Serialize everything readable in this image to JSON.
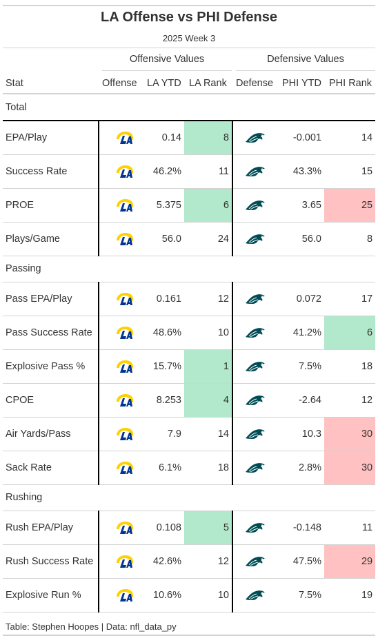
{
  "title": "LA Offense vs PHI Defense",
  "subtitle": "2025 Week 3",
  "spanners": {
    "offense": "Offensive Values",
    "defense": "Defensive Values"
  },
  "columns": {
    "stat": "Stat",
    "offense": "Offense",
    "off_ytd": "LA YTD",
    "off_rank": "LA Rank",
    "defense": "Defense",
    "def_ytd": "PHI YTD",
    "def_rank": "PHI Rank"
  },
  "colors": {
    "good": "#b2e8cc",
    "bad": "#ffc1c1",
    "rams_blue": "#003594",
    "rams_gold": "#ffd100",
    "eagles_green": "#004c54"
  },
  "icons": {
    "offense_logo": "la-rams-logo",
    "defense_logo": "philadelphia-eagles-logo"
  },
  "groups": [
    {
      "name": "Total",
      "rows": [
        {
          "stat": "EPA/Play",
          "off_ytd": "0.14",
          "off_rank": "8",
          "off_hl": "good",
          "def_ytd": "-0.001",
          "def_rank": "14",
          "def_hl": ""
        },
        {
          "stat": "Success Rate",
          "off_ytd": "46.2%",
          "off_rank": "11",
          "off_hl": "",
          "def_ytd": "43.3%",
          "def_rank": "15",
          "def_hl": ""
        },
        {
          "stat": "PROE",
          "off_ytd": "5.375",
          "off_rank": "6",
          "off_hl": "good",
          "def_ytd": "3.65",
          "def_rank": "25",
          "def_hl": "bad"
        },
        {
          "stat": "Plays/Game",
          "off_ytd": "56.0",
          "off_rank": "24",
          "off_hl": "",
          "def_ytd": "56.0",
          "def_rank": "8",
          "def_hl": ""
        }
      ]
    },
    {
      "name": "Passing",
      "rows": [
        {
          "stat": "Pass EPA/Play",
          "off_ytd": "0.161",
          "off_rank": "12",
          "off_hl": "",
          "def_ytd": "0.072",
          "def_rank": "17",
          "def_hl": ""
        },
        {
          "stat": "Pass Success Rate",
          "off_ytd": "48.6%",
          "off_rank": "10",
          "off_hl": "",
          "def_ytd": "41.2%",
          "def_rank": "6",
          "def_hl": "good"
        },
        {
          "stat": "Explosive Pass %",
          "off_ytd": "15.7%",
          "off_rank": "1",
          "off_hl": "good",
          "def_ytd": "7.5%",
          "def_rank": "18",
          "def_hl": ""
        },
        {
          "stat": "CPOE",
          "off_ytd": "8.253",
          "off_rank": "4",
          "off_hl": "good",
          "def_ytd": "-2.64",
          "def_rank": "12",
          "def_hl": ""
        },
        {
          "stat": "Air Yards/Pass",
          "off_ytd": "7.9",
          "off_rank": "14",
          "off_hl": "",
          "def_ytd": "10.3",
          "def_rank": "30",
          "def_hl": "bad"
        },
        {
          "stat": "Sack Rate",
          "off_ytd": "6.1%",
          "off_rank": "18",
          "off_hl": "",
          "def_ytd": "2.8%",
          "def_rank": "30",
          "def_hl": "bad"
        }
      ]
    },
    {
      "name": "Rushing",
      "rows": [
        {
          "stat": "Rush EPA/Play",
          "off_ytd": "0.108",
          "off_rank": "5",
          "off_hl": "good",
          "def_ytd": "-0.148",
          "def_rank": "11",
          "def_hl": ""
        },
        {
          "stat": "Rush Success Rate",
          "off_ytd": "42.6%",
          "off_rank": "12",
          "off_hl": "",
          "def_ytd": "47.5%",
          "def_rank": "29",
          "def_hl": "bad"
        },
        {
          "stat": "Explosive Run %",
          "off_ytd": "10.6%",
          "off_rank": "10",
          "off_hl": "",
          "def_ytd": "7.5%",
          "def_rank": "19",
          "def_hl": ""
        }
      ]
    }
  ],
  "footer": "Table: Stephen Hoopes | Data: nfl_data_py"
}
